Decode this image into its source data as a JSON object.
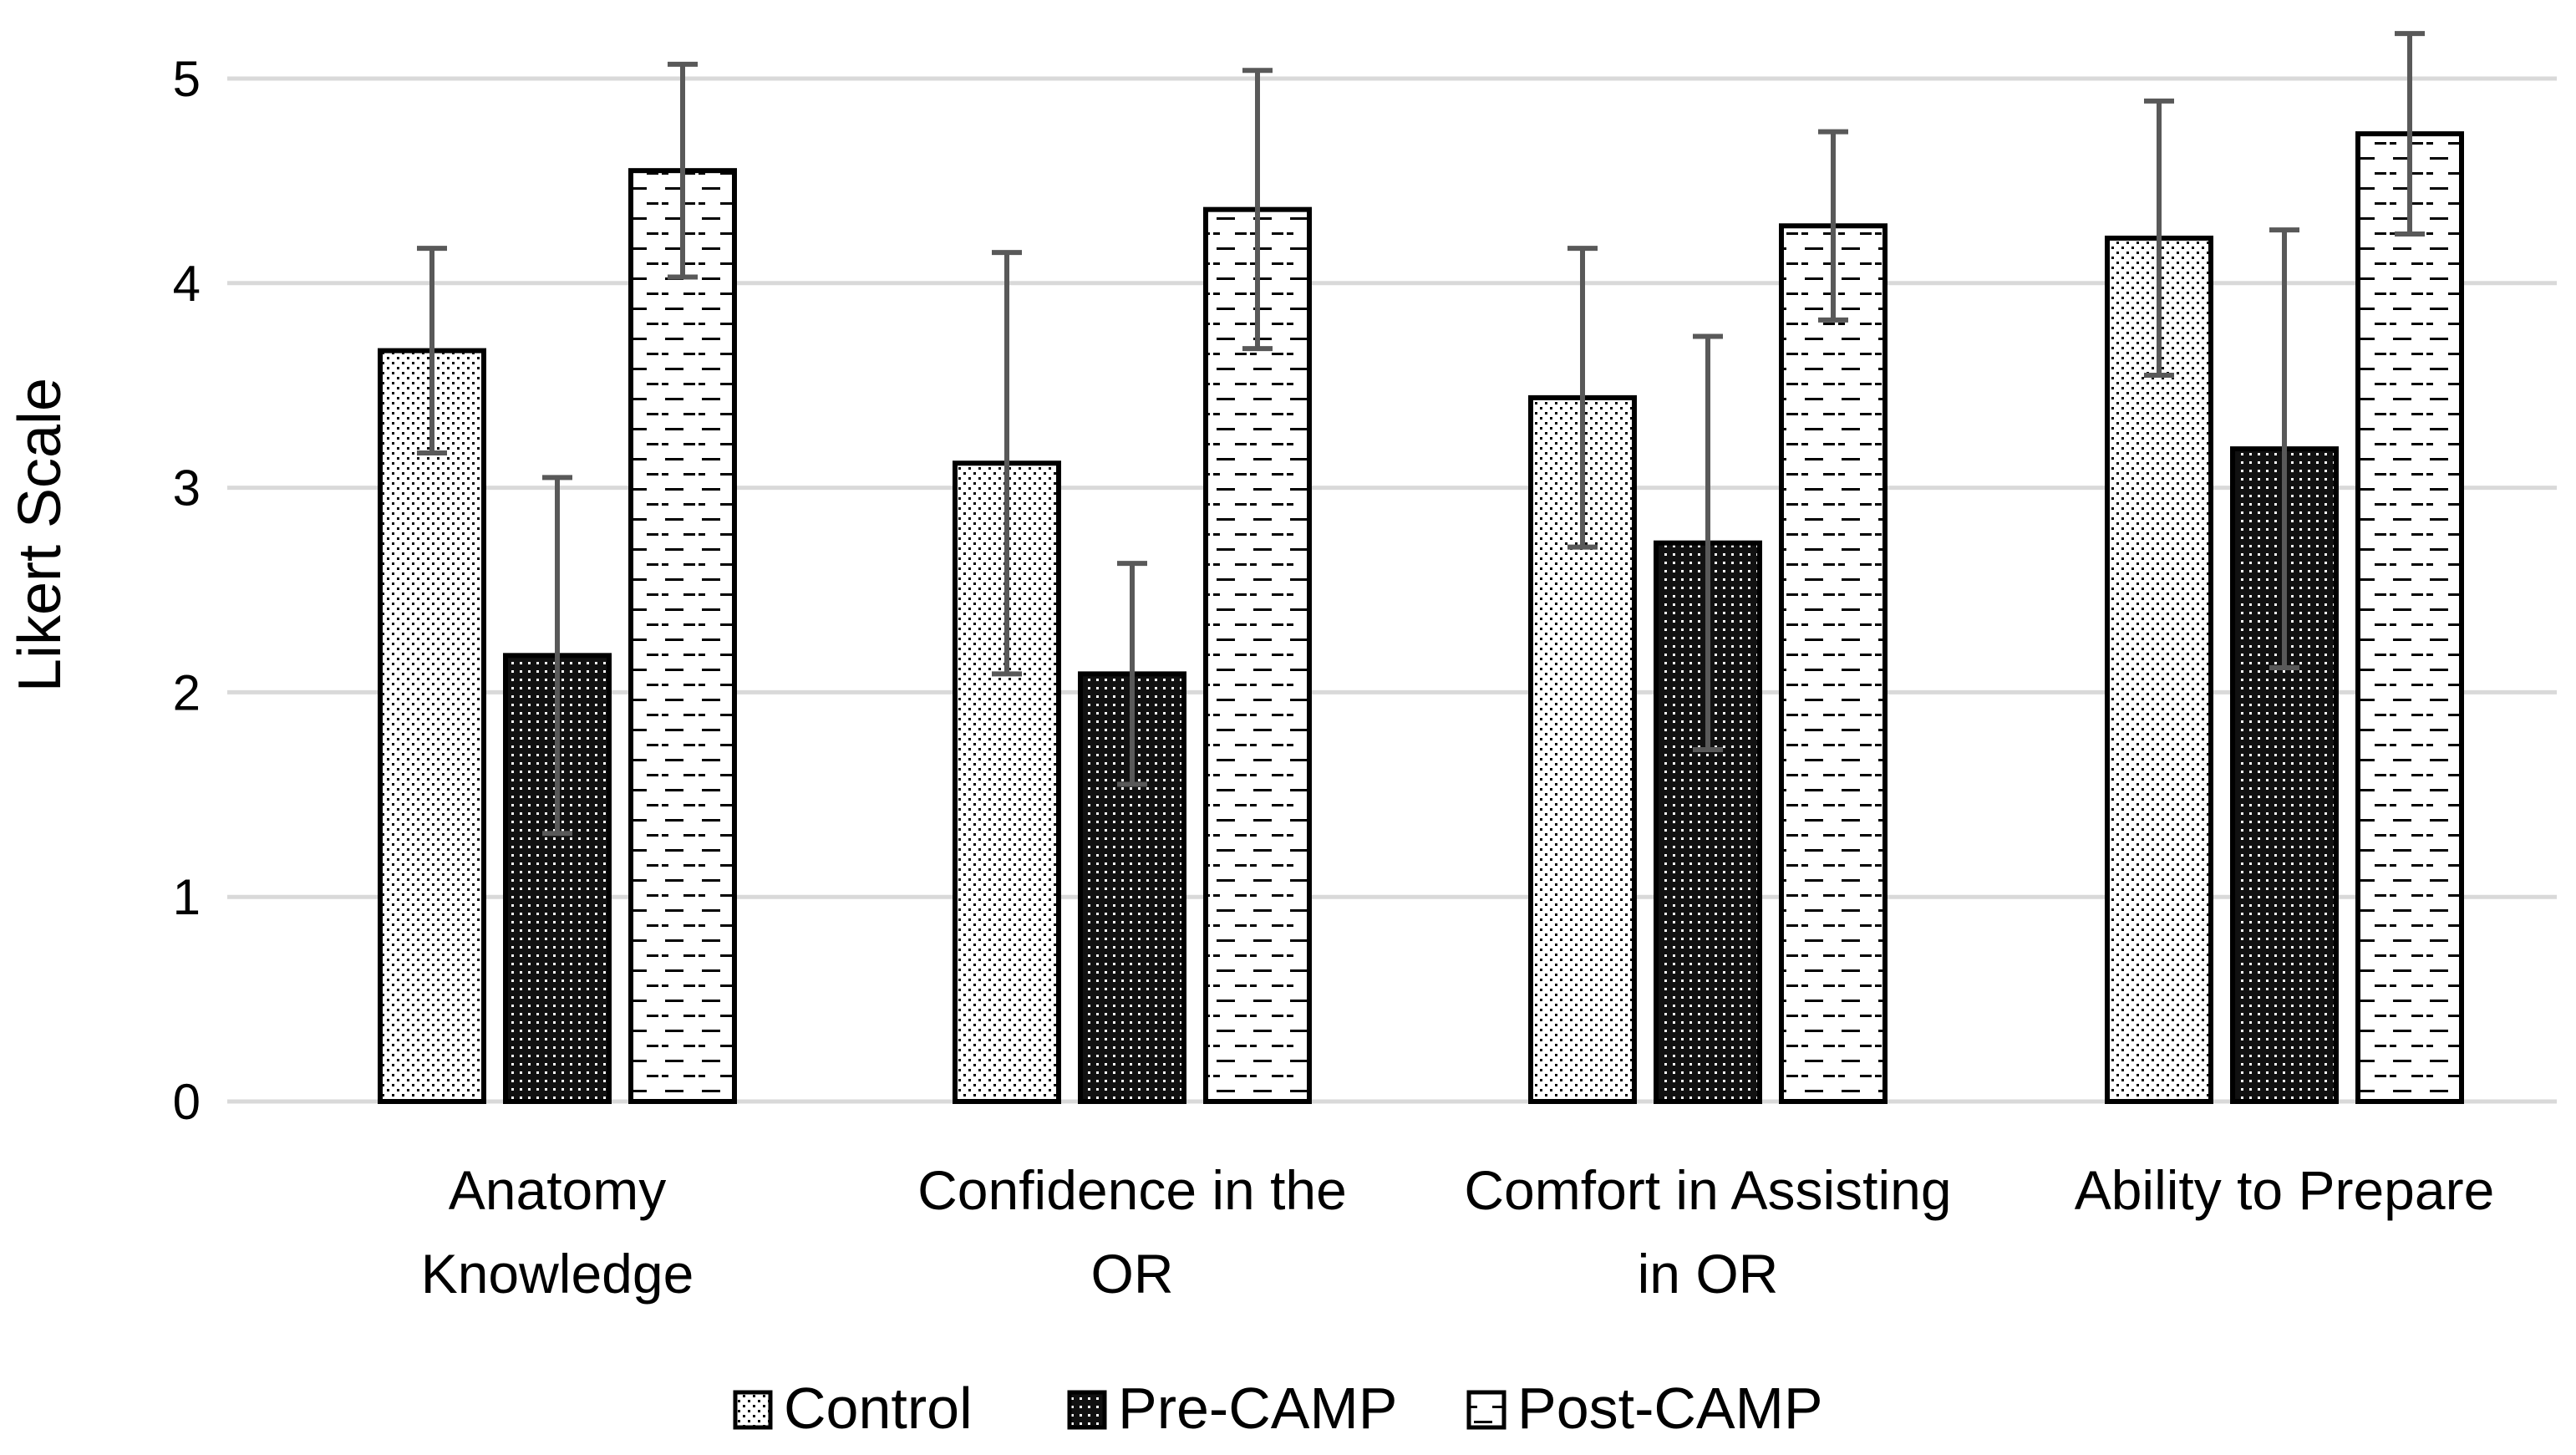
{
  "chart_data": {
    "type": "bar",
    "title": "",
    "xlabel": "",
    "ylabel": "Likert Scale",
    "ylim": [
      0,
      5
    ],
    "yticks": [
      0,
      1,
      2,
      3,
      4,
      5
    ],
    "grid": true,
    "legend_position": "bottom",
    "categories": [
      [
        "Anatomy",
        "Knowledge"
      ],
      [
        "Confidence in the",
        "OR"
      ],
      [
        "Comfort in Assisting",
        "in OR"
      ],
      [
        "Ability to Prepare"
      ]
    ],
    "series": [
      {
        "name": "Control",
        "pattern": "dots",
        "values": [
          3.67,
          3.12,
          3.44,
          4.22
        ],
        "errors": [
          0.5,
          1.03,
          0.73,
          0.67
        ]
      },
      {
        "name": "Pre-CAMP",
        "pattern": "dense-dark",
        "values": [
          2.18,
          2.09,
          2.73,
          3.19
        ],
        "errors": [
          0.87,
          0.54,
          1.01,
          1.07
        ]
      },
      {
        "name": "Post-CAMP",
        "pattern": "dashes",
        "values": [
          4.55,
          4.36,
          4.28,
          4.73
        ],
        "errors": [
          0.52,
          0.68,
          0.46,
          0.49
        ]
      }
    ],
    "colors": {
      "grid": "#d9d9d9",
      "bar_outline": "#000000",
      "error_bar": "#595959"
    }
  }
}
